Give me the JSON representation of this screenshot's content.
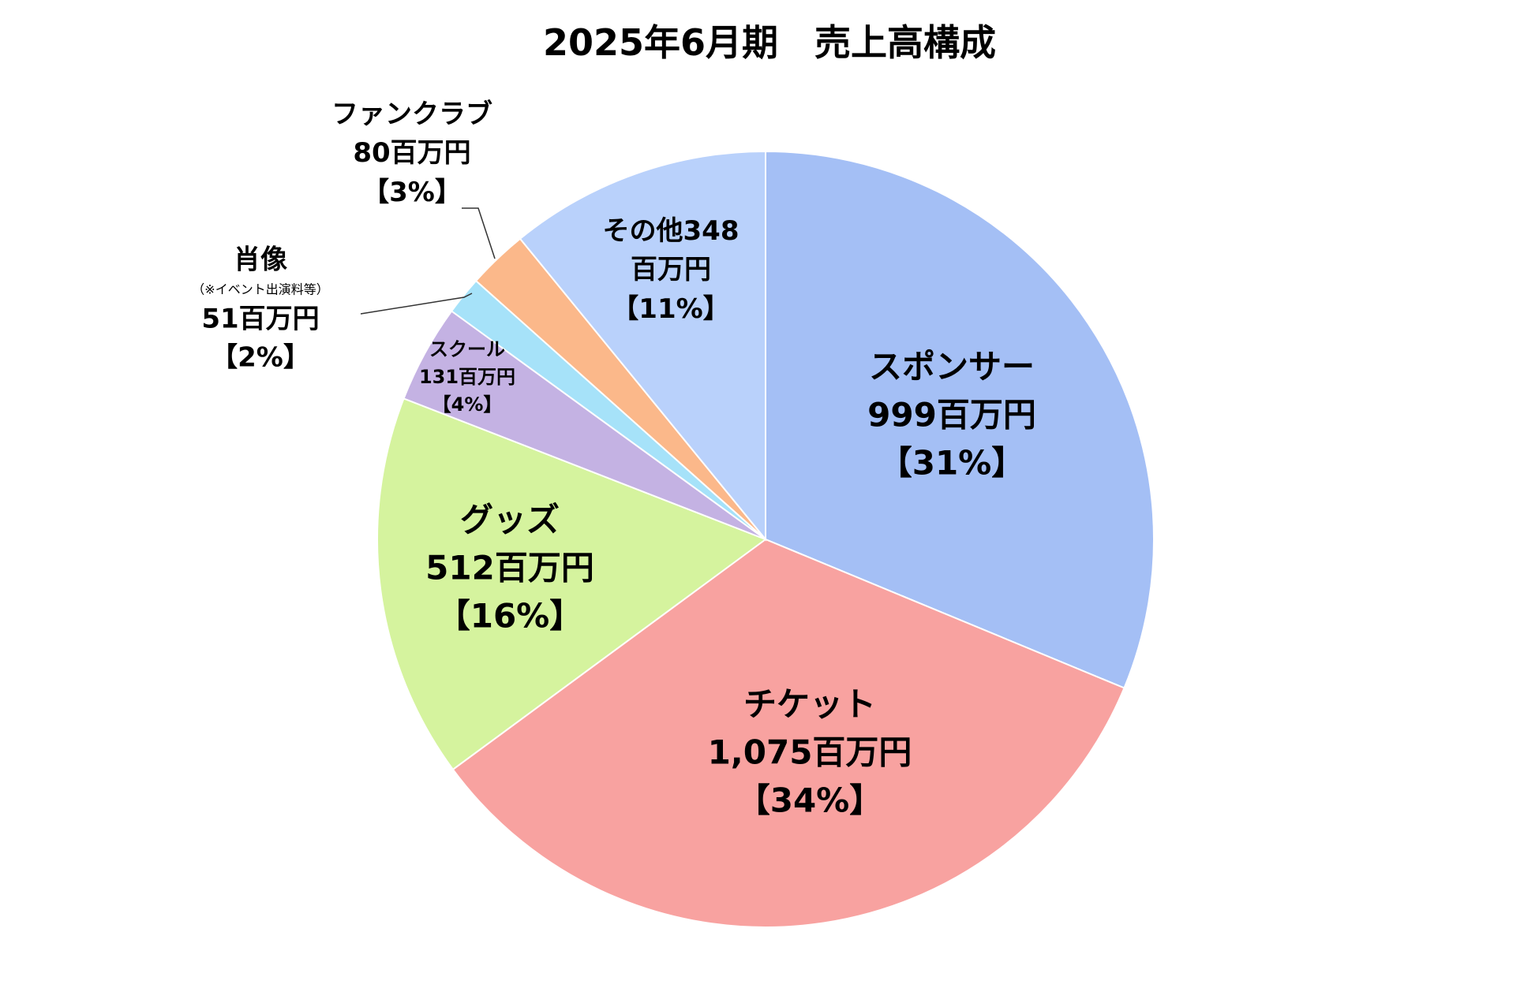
{
  "chart_data": {
    "type": "pie",
    "title": "2025年6月期　売上高構成",
    "unit": "百万円",
    "slices": [
      {
        "label": "スポンサー",
        "value": 999,
        "value_text": "999百万円",
        "percent_text": "【31%】",
        "color": "#A4BFF5"
      },
      {
        "label": "チケット",
        "value": 1075,
        "value_text": "1,075百万円",
        "percent_text": "【34%】",
        "color": "#F8A2A0"
      },
      {
        "label": "グッズ",
        "value": 512,
        "value_text": "512百万円",
        "percent_text": "【16%】",
        "color": "#D5F39E"
      },
      {
        "label": "スクール",
        "value": 131,
        "value_text": "131百万円",
        "percent_text": "【4%】",
        "color": "#C4B2E3"
      },
      {
        "label": "肖像",
        "note": "（※イベント出演料等）",
        "value": 51,
        "value_text": "51百万円",
        "percent_text": "【2%】",
        "color": "#A6E2F9"
      },
      {
        "label": "ファンクラブ",
        "value": 80,
        "value_text": "80百万円",
        "percent_text": "【3%】",
        "color": "#FBB88A"
      },
      {
        "label": "その他",
        "value": 348,
        "value_text": "その他348",
        "value_text2": "百万円",
        "percent_text": "【11%】",
        "color": "#B9D1FB"
      }
    ]
  }
}
